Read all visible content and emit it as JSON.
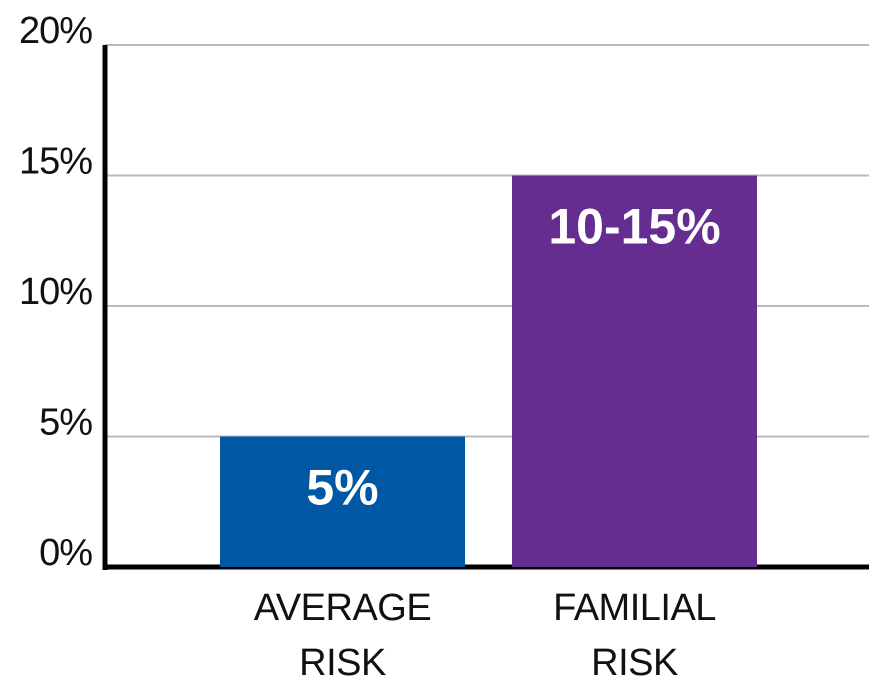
{
  "chart_data": {
    "type": "bar",
    "categories": [
      "AVERAGE RISK",
      "FAMILIAL RISK"
    ],
    "values": [
      5,
      15
    ],
    "value_labels": [
      "5%",
      "10-15%"
    ],
    "colors": [
      "#0057a3",
      "#642d8f"
    ],
    "ylim": [
      0,
      20
    ],
    "yticks": [
      {
        "value": 0,
        "label": "0%"
      },
      {
        "value": 5,
        "label": "5%"
      },
      {
        "value": 10,
        "label": "10%"
      },
      {
        "value": 15,
        "label": "15%"
      },
      {
        "value": 20,
        "label": "20%"
      }
    ],
    "grid": true
  }
}
